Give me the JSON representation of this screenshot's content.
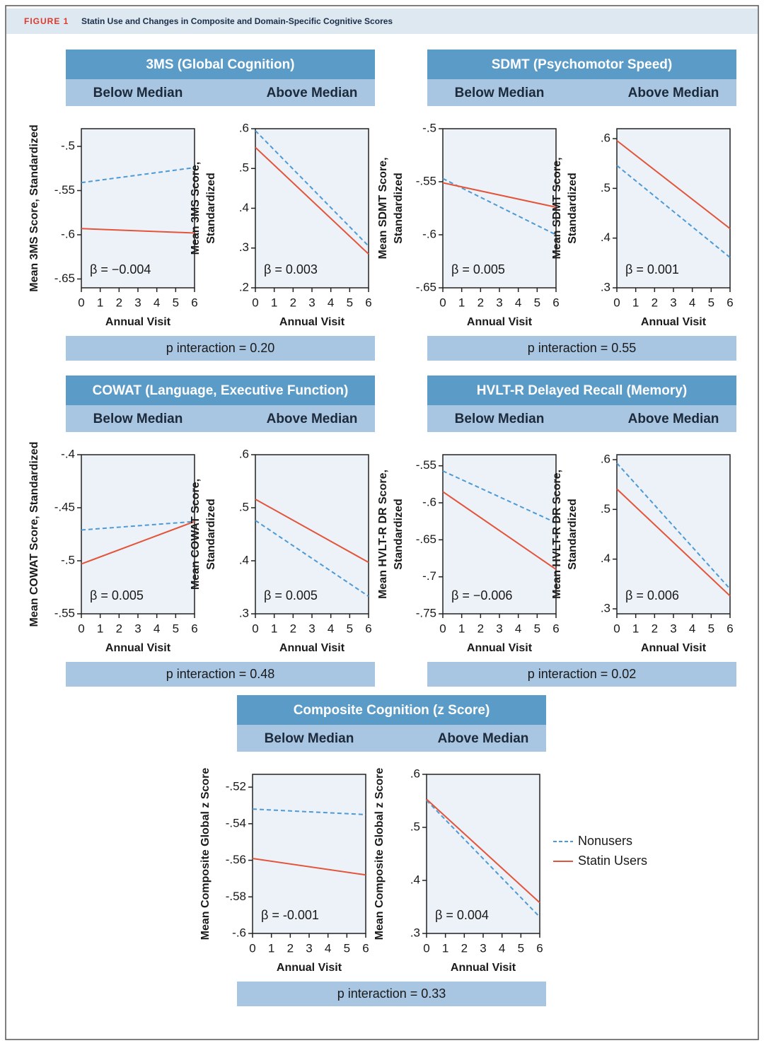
{
  "figure": {
    "label": "FIGURE 1",
    "title": "Statin Use and Changes in Composite and Domain-Specific Cognitive Scores"
  },
  "panels": [
    {
      "title": "3MS (Global Cognition)",
      "subtitles": [
        "Below Median",
        "Above Median"
      ],
      "p_interaction": "p interaction = 0.20"
    },
    {
      "title": "SDMT (Psychomotor Speed)",
      "subtitles": [
        "Below Median",
        "Above Median"
      ],
      "p_interaction": "p interaction = 0.55"
    },
    {
      "title": "COWAT (Language, Executive Function)",
      "subtitles": [
        "Below Median",
        "Above Median"
      ],
      "p_interaction": "p interaction = 0.48"
    },
    {
      "title": "HVLT-R Delayed Recall (Memory)",
      "subtitles": [
        "Below Median",
        "Above Median"
      ],
      "p_interaction": "p interaction = 0.02"
    },
    {
      "title": "Composite Cognition (z Score)",
      "subtitles": [
        "Below Median",
        "Above Median"
      ],
      "p_interaction": "p interaction = 0.33"
    }
  ],
  "chart_data": [
    {
      "type": "line",
      "ylabel": [
        "Mean 3MS Score, Standardized"
      ],
      "xlabel": "Annual Visit",
      "annotation": "β = −0.004",
      "x": [
        0,
        6
      ],
      "xlim": [
        0,
        6
      ],
      "xticks": [
        0,
        1,
        2,
        3,
        4,
        5,
        6
      ],
      "ylim": [
        -0.66,
        -0.48
      ],
      "yticks": [
        {
          "value": -0.5,
          "label": "-.5"
        },
        {
          "value": -0.55,
          "label": "-.55"
        },
        {
          "value": -0.6,
          "label": "-.6"
        },
        {
          "value": -0.65,
          "label": "-.65"
        }
      ],
      "series": [
        {
          "name": "Nonusers",
          "color": "#4d9ad6",
          "dashed": true,
          "values": [
            -0.541,
            -0.524
          ]
        },
        {
          "name": "Statin Users",
          "color": "#e3553b",
          "dashed": false,
          "values": [
            -0.593,
            -0.598
          ]
        }
      ]
    },
    {
      "type": "line",
      "ylabel": [
        "Mean 3MS Score,",
        "Standardized"
      ],
      "xlabel": "Annual Visit",
      "annotation": "β = 0.003",
      "x": [
        0,
        6
      ],
      "xlim": [
        0,
        6
      ],
      "xticks": [
        0,
        1,
        2,
        3,
        4,
        5,
        6
      ],
      "ylim": [
        0.2,
        0.6
      ],
      "yticks": [
        {
          "value": 0.6,
          "label": ".6"
        },
        {
          "value": 0.5,
          "label": ".5"
        },
        {
          "value": 0.4,
          "label": ".4"
        },
        {
          "value": 0.3,
          "label": ".3"
        },
        {
          "value": 0.2,
          "label": ".2"
        }
      ],
      "series": [
        {
          "name": "Nonusers",
          "color": "#4d9ad6",
          "dashed": true,
          "values": [
            0.595,
            0.305
          ]
        },
        {
          "name": "Statin Users",
          "color": "#e3553b",
          "dashed": false,
          "values": [
            0.553,
            0.285
          ]
        }
      ]
    },
    {
      "type": "line",
      "ylabel": [
        "Mean SDMT Score,",
        "Standardized"
      ],
      "xlabel": "Annual Visit",
      "annotation": "β = 0.005",
      "x": [
        0,
        6
      ],
      "xlim": [
        0,
        6
      ],
      "xticks": [
        0,
        1,
        2,
        3,
        4,
        5,
        6
      ],
      "ylim": [
        -0.65,
        -0.5
      ],
      "yticks": [
        {
          "value": -0.5,
          "label": "-.5"
        },
        {
          "value": -0.55,
          "label": "-.55"
        },
        {
          "value": -0.6,
          "label": "-.6"
        },
        {
          "value": -0.65,
          "label": "-.65"
        }
      ],
      "series": [
        {
          "name": "Nonusers",
          "color": "#4d9ad6",
          "dashed": true,
          "values": [
            -0.547,
            -0.6
          ]
        },
        {
          "name": "Statin Users",
          "color": "#e3553b",
          "dashed": false,
          "values": [
            -0.551,
            -0.574
          ]
        }
      ]
    },
    {
      "type": "line",
      "ylabel": [
        "Mean SDMT Score,",
        "Standardized"
      ],
      "xlabel": "Annual Visit",
      "annotation": "β = 0.001",
      "x": [
        0,
        6
      ],
      "xlim": [
        0,
        6
      ],
      "xticks": [
        0,
        1,
        2,
        3,
        4,
        5,
        6
      ],
      "ylim": [
        0.3,
        0.62
      ],
      "yticks": [
        {
          "value": 0.6,
          "label": ".6"
        },
        {
          "value": 0.5,
          "label": ".5"
        },
        {
          "value": 0.4,
          "label": ".4"
        },
        {
          "value": 0.3,
          "label": ".3"
        }
      ],
      "series": [
        {
          "name": "Nonusers",
          "color": "#4d9ad6",
          "dashed": true,
          "values": [
            0.546,
            0.361
          ]
        },
        {
          "name": "Statin Users",
          "color": "#e3553b",
          "dashed": false,
          "values": [
            0.596,
            0.419
          ]
        }
      ]
    },
    {
      "type": "line",
      "ylabel": [
        "Mean COWAT Score, Standardized"
      ],
      "xlabel": "Annual Visit",
      "annotation": "β = 0.005",
      "x": [
        0,
        6
      ],
      "xlim": [
        0,
        6
      ],
      "xticks": [
        0,
        1,
        2,
        3,
        4,
        5,
        6
      ],
      "ylim": [
        -0.55,
        -0.4
      ],
      "yticks": [
        {
          "value": -0.4,
          "label": "-.4"
        },
        {
          "value": -0.45,
          "label": "-.45"
        },
        {
          "value": -0.5,
          "label": "-.5"
        },
        {
          "value": -0.55,
          "label": "-.55"
        }
      ],
      "series": [
        {
          "name": "Nonusers",
          "color": "#4d9ad6",
          "dashed": true,
          "values": [
            -0.471,
            -0.463
          ]
        },
        {
          "name": "Statin Users",
          "color": "#e3553b",
          "dashed": false,
          "values": [
            -0.503,
            -0.463
          ]
        }
      ]
    },
    {
      "type": "line",
      "ylabel": [
        "Mean COWAT Score,",
        "Standardized"
      ],
      "xlabel": "Annual Visit",
      "annotation": "β = 0.005",
      "x": [
        0,
        6
      ],
      "xlim": [
        0,
        6
      ],
      "xticks": [
        0,
        1,
        2,
        3,
        4,
        5,
        6
      ],
      "ylim": [
        0.3,
        0.6
      ],
      "yticks": [
        {
          "value": 0.6,
          "label": ".6"
        },
        {
          "value": 0.5,
          "label": ".5"
        },
        {
          "value": 0.4,
          "label": ".4"
        },
        {
          "value": 0.3,
          "label": ".3"
        }
      ],
      "series": [
        {
          "name": "Nonusers",
          "color": "#4d9ad6",
          "dashed": true,
          "values": [
            0.476,
            0.333
          ]
        },
        {
          "name": "Statin Users",
          "color": "#e3553b",
          "dashed": false,
          "values": [
            0.516,
            0.397
          ]
        }
      ]
    },
    {
      "type": "line",
      "ylabel": [
        "Mean HVLT-R DR Score,",
        "Standardized"
      ],
      "xlabel": "Annual Visit",
      "annotation": "β = −0.006",
      "x": [
        0,
        6
      ],
      "xlim": [
        0,
        6
      ],
      "xticks": [
        0,
        1,
        2,
        3,
        4,
        5,
        6
      ],
      "ylim": [
        -0.75,
        -0.535
      ],
      "yticks": [
        {
          "value": -0.55,
          "label": "-.55"
        },
        {
          "value": -0.6,
          "label": "-.6"
        },
        {
          "value": -0.65,
          "label": "-.65"
        },
        {
          "value": -0.7,
          "label": "-.7"
        },
        {
          "value": -0.75,
          "label": "-.75"
        }
      ],
      "series": [
        {
          "name": "Nonusers",
          "color": "#4d9ad6",
          "dashed": true,
          "values": [
            -0.557,
            -0.627
          ]
        },
        {
          "name": "Statin Users",
          "color": "#e3553b",
          "dashed": false,
          "values": [
            -0.585,
            -0.69
          ]
        }
      ]
    },
    {
      "type": "line",
      "ylabel": [
        "Mean HVLT-R DR Score,",
        "Standardized"
      ],
      "xlabel": "Annual Visit",
      "annotation": "β = 0.006",
      "x": [
        0,
        6
      ],
      "xlim": [
        0,
        6
      ],
      "xticks": [
        0,
        1,
        2,
        3,
        4,
        5,
        6
      ],
      "ylim": [
        0.29,
        0.61
      ],
      "yticks": [
        {
          "value": 0.6,
          "label": ".6"
        },
        {
          "value": 0.5,
          "label": ".5"
        },
        {
          "value": 0.4,
          "label": ".4"
        },
        {
          "value": 0.3,
          "label": ".3"
        }
      ],
      "series": [
        {
          "name": "Nonusers",
          "color": "#4d9ad6",
          "dashed": true,
          "values": [
            0.593,
            0.34
          ]
        },
        {
          "name": "Statin Users",
          "color": "#e3553b",
          "dashed": false,
          "values": [
            0.541,
            0.326
          ]
        }
      ]
    },
    {
      "type": "line",
      "ylabel": [
        "Mean Composite Global z Score"
      ],
      "xlabel": "Annual Visit",
      "annotation": "β = -0.001",
      "x": [
        0,
        6
      ],
      "xlim": [
        0,
        6
      ],
      "xticks": [
        0,
        1,
        2,
        3,
        4,
        5,
        6
      ],
      "ylim": [
        -0.6,
        -0.513
      ],
      "yticks": [
        {
          "value": -0.52,
          "label": "-.52"
        },
        {
          "value": -0.54,
          "label": "-.54"
        },
        {
          "value": -0.56,
          "label": "-.56"
        },
        {
          "value": -0.58,
          "label": "-.58"
        },
        {
          "value": -0.6,
          "label": "-.6"
        }
      ],
      "series": [
        {
          "name": "Nonusers",
          "color": "#4d9ad6",
          "dashed": true,
          "values": [
            -0.532,
            -0.535
          ]
        },
        {
          "name": "Statin Users",
          "color": "#e3553b",
          "dashed": false,
          "values": [
            -0.559,
            -0.568
          ]
        }
      ]
    },
    {
      "type": "line",
      "ylabel": [
        "Mean Composite Global z Score"
      ],
      "xlabel": "Annual Visit",
      "annotation": "β = 0.004",
      "x": [
        0,
        6
      ],
      "xlim": [
        0,
        6
      ],
      "xticks": [
        0,
        1,
        2,
        3,
        4,
        5,
        6
      ],
      "ylim": [
        0.3,
        0.6
      ],
      "yticks": [
        {
          "value": 0.6,
          "label": ".6"
        },
        {
          "value": 0.5,
          "label": ".5"
        },
        {
          "value": 0.4,
          "label": ".4"
        },
        {
          "value": 0.3,
          "label": ".3"
        }
      ],
      "series": [
        {
          "name": "Nonusers",
          "color": "#4d9ad6",
          "dashed": true,
          "values": [
            0.551,
            0.331
          ]
        },
        {
          "name": "Statin Users",
          "color": "#e3553b",
          "dashed": false,
          "values": [
            0.553,
            0.358
          ]
        }
      ]
    }
  ]
}
